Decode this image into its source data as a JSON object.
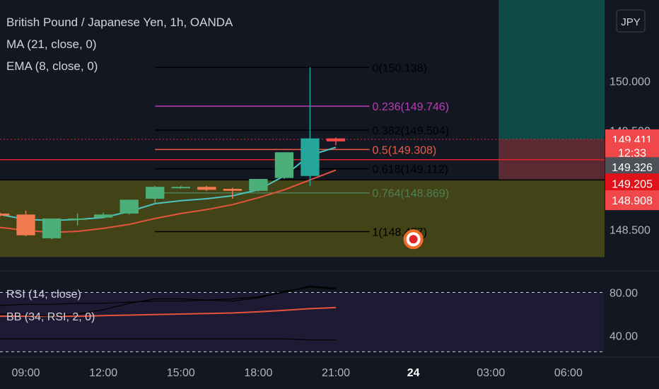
{
  "chart_data": {
    "type": "candlestick",
    "title": "British Pound / Japanese Yen, 1h, OANDA",
    "currency_button": "JPY",
    "indicators": [
      {
        "label": "MA (21, close, 0)"
      },
      {
        "label": "EMA (8, close, 0)"
      }
    ],
    "y_axis": {
      "ticks": [
        {
          "value": 150.0,
          "label": "150.000"
        },
        {
          "value": 149.5,
          "label": "149.500"
        },
        {
          "value": 148.5,
          "label": "148.500"
        }
      ],
      "range": [
        148.08,
        150.82
      ]
    },
    "x_axis": {
      "ticks": [
        {
          "t": 9,
          "label": "09:00"
        },
        {
          "t": 12,
          "label": "12:00"
        },
        {
          "t": 15,
          "label": "15:00"
        },
        {
          "t": 18,
          "label": "18:00"
        },
        {
          "t": 21,
          "label": "21:00"
        },
        {
          "t": 24,
          "label": "24",
          "bold": true
        },
        {
          "t": 27,
          "label": "03:00"
        },
        {
          "t": 30,
          "label": "06:00"
        }
      ],
      "range": [
        8.0,
        31.4
      ]
    },
    "candles": [
      {
        "t": 8.0,
        "o": 148.66,
        "h": 148.67,
        "l": 148.63,
        "c": 148.64
      },
      {
        "t": 9.0,
        "o": 148.65,
        "h": 148.69,
        "l": 148.43,
        "c": 148.44
      },
      {
        "t": 10.0,
        "o": 148.41,
        "h": 148.61,
        "l": 148.4,
        "c": 148.61
      },
      {
        "t": 11.0,
        "o": 148.61,
        "h": 148.66,
        "l": 148.54,
        "c": 148.61
      },
      {
        "t": 12.0,
        "o": 148.62,
        "h": 148.67,
        "l": 148.61,
        "c": 148.65
      },
      {
        "t": 13.0,
        "o": 148.66,
        "h": 148.8,
        "l": 148.65,
        "c": 148.8
      },
      {
        "t": 14.0,
        "o": 148.81,
        "h": 148.94,
        "l": 148.77,
        "c": 148.93
      },
      {
        "t": 15.0,
        "o": 148.93,
        "h": 148.94,
        "l": 148.91,
        "c": 148.93
      },
      {
        "t": 16.0,
        "o": 148.93,
        "h": 148.94,
        "l": 148.89,
        "c": 148.9
      },
      {
        "t": 17.0,
        "o": 148.91,
        "h": 148.92,
        "l": 148.81,
        "c": 148.89
      },
      {
        "t": 18.0,
        "o": 148.89,
        "h": 149.01,
        "l": 148.88,
        "c": 149.01
      },
      {
        "t": 19.0,
        "o": 149.02,
        "h": 149.28,
        "l": 149.01,
        "c": 149.28
      },
      {
        "t": 20.0,
        "o": 149.04,
        "h": 150.14,
        "l": 148.94,
        "c": 149.42
      },
      {
        "t": 21.0,
        "o": 149.42,
        "h": 149.43,
        "l": 149.35,
        "c": 149.39
      }
    ],
    "fibonacci": [
      {
        "ratio": "0",
        "price": 150.138,
        "label": "0(150.138)",
        "color": "#000000"
      },
      {
        "ratio": "0.236",
        "price": 149.746,
        "label": "0.236(149.746)",
        "color": "#ba3db5"
      },
      {
        "ratio": "0.382",
        "price": 149.504,
        "label": "0.382(149.504)",
        "color": "#000000"
      },
      {
        "ratio": "0.5",
        "price": 149.308,
        "label": "0.5(149.308)",
        "color": "#f05a46"
      },
      {
        "ratio": "0.618",
        "price": 149.112,
        "label": "0.618(149.112)",
        "color": "#000000"
      },
      {
        "ratio": "0.764",
        "price": 148.869,
        "label": "0.764(148.869)",
        "color": "#4f7f57"
      },
      {
        "ratio": "1",
        "price": 148.477,
        "label": "1(148.477)",
        "color": "#000000"
      }
    ],
    "fib_range": {
      "t_start": 14.0,
      "t_end": 21.0
    },
    "ma_line": [
      [
        8,
        148.52
      ],
      [
        9,
        148.49
      ],
      [
        10,
        148.47
      ],
      [
        11,
        148.48
      ],
      [
        12,
        148.51
      ],
      [
        13,
        148.55
      ],
      [
        14,
        148.61
      ],
      [
        15,
        148.66
      ],
      [
        16,
        148.7
      ],
      [
        17,
        148.75
      ],
      [
        18,
        148.82
      ],
      [
        19,
        148.9
      ],
      [
        20,
        149.0
      ],
      [
        21,
        149.1
      ]
    ],
    "ema_line": [
      [
        8,
        148.65
      ],
      [
        9,
        148.6
      ],
      [
        10,
        148.59
      ],
      [
        11,
        148.6
      ],
      [
        12,
        148.62
      ],
      [
        13,
        148.68
      ],
      [
        14,
        148.76
      ],
      [
        15,
        148.79
      ],
      [
        16,
        148.81
      ],
      [
        17,
        148.84
      ],
      [
        18,
        148.9
      ],
      [
        19,
        149.04
      ],
      [
        20,
        149.25
      ],
      [
        21,
        149.33
      ]
    ],
    "zone": {
      "top": 149.0,
      "bottom": 148.22,
      "t_start": 8.0,
      "t_end": 31.4,
      "color": "#4b4b14"
    },
    "position": {
      "t_start": 27.3,
      "t_end": 31.4,
      "target_top": 150.82,
      "entry": 149.411,
      "stop": 149.0,
      "profit_color": "#0f4a49",
      "loss_color": "#5a2a32"
    },
    "horizontal_lines": [
      {
        "price": 149.205,
        "color": "#e2252b",
        "style": "solid"
      },
      {
        "price": 149.0,
        "color": "#000000",
        "style": "solid"
      },
      {
        "price": 149.411,
        "color": "#e2252b",
        "style": "dotted"
      }
    ],
    "price_labels": [
      {
        "price": 149.411,
        "text": "149.411",
        "bg": "#f0474a",
        "fg": "#ffffff"
      },
      {
        "price": 149.28,
        "text": "12:33",
        "bg": "#f0474a",
        "fg": "#ffffff"
      },
      {
        "price": 149.13,
        "text": "149.326",
        "bg": "#4d5057",
        "fg": "#ffffff"
      },
      {
        "price": 148.965,
        "text": "149.205",
        "bg": "#e0131a",
        "fg": "#ffffff"
      },
      {
        "price": 148.795,
        "text": "148.908",
        "bg": "#f0474a",
        "fg": "#ffffff"
      }
    ],
    "target_marker": {
      "t": 24.0,
      "price": 148.4
    },
    "rsi_pane": {
      "labels": [
        "RSI (14, close)",
        "BB (34, RSI, 2, 0)"
      ],
      "range": [
        20,
        100
      ],
      "ticks": [
        {
          "value": 80,
          "label": "80.00"
        },
        {
          "value": 40,
          "label": "40.00"
        }
      ],
      "bands": [
        80,
        25
      ],
      "rsi_line": [
        [
          8,
          60
        ],
        [
          9,
          59
        ],
        [
          10,
          58
        ],
        [
          11,
          60
        ],
        [
          12,
          64
        ],
        [
          13,
          70
        ],
        [
          14,
          74
        ],
        [
          15,
          74
        ],
        [
          16,
          73
        ],
        [
          17,
          72
        ],
        [
          18,
          75
        ],
        [
          19,
          81
        ],
        [
          20,
          85
        ],
        [
          21,
          83
        ]
      ],
      "bb_upper": [
        [
          8,
          68
        ],
        [
          9,
          69
        ],
        [
          10,
          69
        ],
        [
          11,
          70
        ],
        [
          12,
          70
        ],
        [
          13,
          71
        ],
        [
          14,
          72
        ],
        [
          15,
          72
        ],
        [
          16,
          73
        ],
        [
          17,
          74
        ],
        [
          18,
          76
        ],
        [
          19,
          80
        ],
        [
          20,
          86
        ],
        [
          21,
          84
        ]
      ],
      "bb_basis": [
        [
          8,
          58
        ],
        [
          9,
          58
        ],
        [
          10,
          58
        ],
        [
          11,
          58
        ],
        [
          12,
          58.5
        ],
        [
          13,
          59
        ],
        [
          14,
          59.5
        ],
        [
          15,
          60
        ],
        [
          16,
          60.5
        ],
        [
          17,
          61
        ],
        [
          18,
          62
        ],
        [
          19,
          63.5
        ],
        [
          20,
          65
        ],
        [
          21,
          66
        ]
      ],
      "bb_lower": [
        [
          8,
          37
        ],
        [
          9,
          37
        ],
        [
          10,
          37
        ],
        [
          11,
          37
        ],
        [
          12,
          37
        ],
        [
          13,
          37
        ],
        [
          14,
          37
        ],
        [
          15,
          37
        ],
        [
          16,
          37
        ],
        [
          17,
          37
        ],
        [
          18,
          37
        ],
        [
          19,
          37
        ],
        [
          20,
          36
        ],
        [
          21,
          36
        ]
      ]
    }
  }
}
